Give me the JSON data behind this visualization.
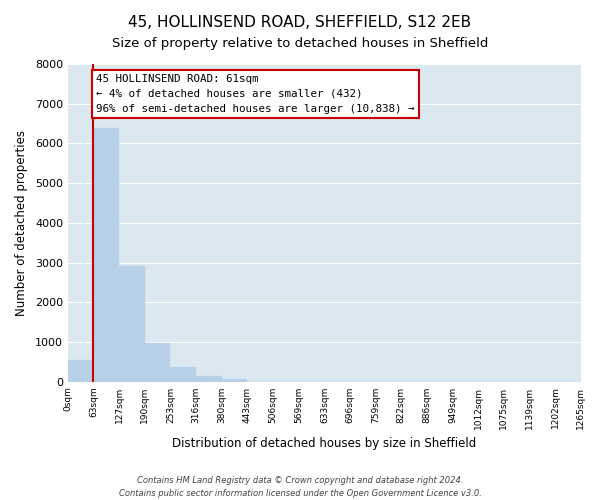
{
  "title": "45, HOLLINSEND ROAD, SHEFFIELD, S12 2EB",
  "subtitle": "Size of property relative to detached houses in Sheffield",
  "xlabel": "Distribution of detached houses by size in Sheffield",
  "ylabel": "Number of detached properties",
  "bar_edges": [
    0,
    63,
    127,
    190,
    253,
    316,
    380,
    443,
    506,
    569,
    633,
    696,
    759,
    822,
    886,
    949,
    1012,
    1075,
    1139,
    1202,
    1265
  ],
  "bar_heights": [
    550,
    6400,
    2920,
    980,
    370,
    150,
    60,
    0,
    0,
    0,
    0,
    0,
    0,
    0,
    0,
    0,
    0,
    0,
    0,
    0
  ],
  "bar_color": "#b8d0e8",
  "bar_edgecolor": "#b8d0e8",
  "tick_labels": [
    "0sqm",
    "63sqm",
    "127sqm",
    "190sqm",
    "253sqm",
    "316sqm",
    "380sqm",
    "443sqm",
    "506sqm",
    "569sqm",
    "633sqm",
    "696sqm",
    "759sqm",
    "822sqm",
    "886sqm",
    "949sqm",
    "1012sqm",
    "1075sqm",
    "1139sqm",
    "1202sqm",
    "1265sqm"
  ],
  "ylim": [
    0,
    8000
  ],
  "yticks": [
    0,
    1000,
    2000,
    3000,
    4000,
    5000,
    6000,
    7000,
    8000
  ],
  "red_line_x": 61,
  "annotation_title": "45 HOLLINSEND ROAD: 61sqm",
  "annotation_line1": "← 4% of detached houses are smaller (432)",
  "annotation_line2": "96% of semi-detached houses are larger (10,838) →",
  "annotation_box_facecolor": "#ffffff",
  "annotation_box_edgecolor": "#cc0000",
  "red_line_color": "#cc0000",
  "fig_facecolor": "#ffffff",
  "plot_facecolor": "#dce8f0",
  "footer_line1": "Contains HM Land Registry data © Crown copyright and database right 2024.",
  "footer_line2": "Contains public sector information licensed under the Open Government Licence v3.0.",
  "grid_color": "#ffffff",
  "title_fontsize": 11,
  "subtitle_fontsize": 9.5,
  "ylabel_text": "Number of detached properties"
}
